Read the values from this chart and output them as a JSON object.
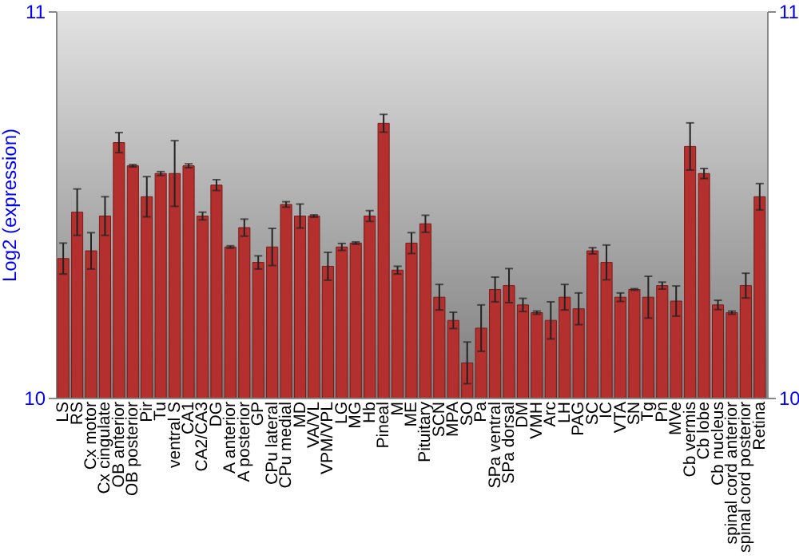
{
  "chart_data": {
    "type": "bar",
    "ylabel": "Log2 (expression)",
    "categories": [
      "LS",
      "RS",
      "Cx motor",
      "Cx cingulate",
      "OB anterior",
      "OB posterior",
      "Pir",
      "Tu",
      "ventral S",
      "CA1",
      "CA2/CA3",
      "DG",
      "A anterior",
      "A posterior",
      "GP",
      "CPu lateral",
      "CPu medial",
      "MD",
      "VA/VL",
      "VPM/VPL",
      "LG",
      "MG",
      "Hb",
      "Pineal",
      "M",
      "ME",
      "Pituitary",
      "SCN",
      "MPA",
      "SO",
      "Pa",
      "SPa ventral",
      "SPa dorsal",
      "DM",
      "VMH",
      "Arc",
      "LH",
      "PAG",
      "SC",
      "IC",
      "VTA",
      "SN",
      "Tg",
      "Pn",
      "MVe",
      "Cb vermis",
      "Cb lobe",
      "Cb nucleus",
      "spinal cord anterior",
      "spinal cord posterior",
      "Retina"
    ],
    "series": [
      {
        "color": "#b3302e",
        "values": [
          10.36,
          10.48,
          10.38,
          10.47,
          10.66,
          10.6,
          10.52,
          10.58,
          10.58,
          10.6,
          10.47,
          10.55,
          10.39,
          10.44,
          10.35,
          10.39,
          10.5,
          10.47,
          10.47,
          10.34,
          10.39,
          10.4,
          10.47,
          10.71,
          10.33,
          10.4,
          10.45,
          10.26,
          10.2,
          10.09,
          10.18,
          10.28,
          10.29,
          10.24,
          10.22,
          10.2,
          10.26,
          10.23,
          10.38,
          10.35,
          10.26,
          10.28,
          10.26,
          10.29,
          10.25,
          10.65,
          10.58,
          10.24,
          10.22,
          10.29,
          10.52
        ],
        "errors": [
          0.04,
          0.06,
          0.047,
          0.05,
          0.026,
          0.003,
          0.052,
          0.005,
          0.085,
          0.005,
          0.01,
          0.014,
          0.003,
          0.022,
          0.017,
          0.048,
          0.007,
          0.031,
          0.003,
          0.036,
          0.009,
          0.003,
          0.014,
          0.023,
          0.01,
          0.027,
          0.022,
          0.033,
          0.021,
          0.054,
          0.06,
          0.032,
          0.044,
          0.017,
          0.004,
          0.048,
          0.033,
          0.041,
          0.008,
          0.045,
          0.011,
          0.002,
          0.054,
          0.009,
          0.039,
          0.061,
          0.013,
          0.012,
          0.004,
          0.032,
          0.034
        ]
      }
    ],
    "ylim": [
      10,
      11
    ],
    "yticks": [
      10,
      11
    ],
    "y2lim": [
      10,
      11
    ],
    "y2ticks": [
      10,
      11
    ],
    "grid": false
  }
}
